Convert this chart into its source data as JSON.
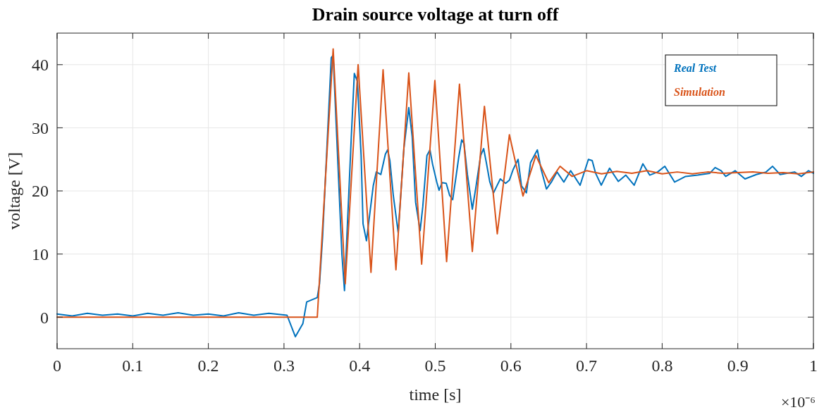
{
  "chart_data": {
    "type": "line",
    "title": "Drain source voltage at turn off",
    "xlabel": "time [s]",
    "ylabel": "voltage [V]",
    "annotations": [
      "×10⁻⁶"
    ],
    "xlim": [
      0,
      1
    ],
    "xticks": [
      0,
      0.1,
      0.2,
      0.3,
      0.4,
      0.5,
      0.6,
      0.7,
      0.8,
      0.9,
      1
    ],
    "ylim": [
      -5,
      45
    ],
    "yticks": [
      0,
      10,
      20,
      30,
      40
    ],
    "grid": true,
    "legend": "top right",
    "marker": "none",
    "line_style": "solid",
    "series": [
      {
        "name": "Real Test",
        "color": "#0072bd",
        "x": [
          0,
          0.02,
          0.04,
          0.06,
          0.08,
          0.1,
          0.12,
          0.14,
          0.16,
          0.18,
          0.2,
          0.22,
          0.24,
          0.26,
          0.28,
          0.304,
          0.315,
          0.325,
          0.33,
          0.344,
          0.347,
          0.351,
          0.3625,
          0.365,
          0.3765,
          0.38,
          0.389,
          0.393,
          0.397,
          0.402,
          0.4045,
          0.409,
          0.418,
          0.422,
          0.428,
          0.434,
          0.437,
          0.44,
          0.4445,
          0.451,
          0.4585,
          0.465,
          0.4695,
          0.474,
          0.48,
          0.4835,
          0.489,
          0.493,
          0.4965,
          0.502,
          0.505,
          0.509,
          0.5145,
          0.519,
          0.523,
          0.5275,
          0.531,
          0.535,
          0.538,
          0.5425,
          0.549,
          0.5535,
          0.56,
          0.564,
          0.5675,
          0.572,
          0.577,
          0.5815,
          0.586,
          0.593,
          0.598,
          0.603,
          0.6095,
          0.614,
          0.6205,
          0.626,
          0.635,
          0.64,
          0.647,
          0.654,
          0.661,
          0.67,
          0.679,
          0.6915,
          0.7025,
          0.7075,
          0.712,
          0.7195,
          0.7305,
          0.742,
          0.752,
          0.763,
          0.7745,
          0.7835,
          0.794,
          0.8035,
          0.8165,
          0.831,
          0.847,
          0.863,
          0.87,
          0.878,
          0.884,
          0.8965,
          0.9095,
          0.9245,
          0.9375,
          0.946,
          0.956,
          0.975,
          0.984,
          0.9935,
          1
        ],
        "values": [
          0.5,
          0.2,
          0.6,
          0.3,
          0.5,
          0.2,
          0.6,
          0.3,
          0.7,
          0.3,
          0.5,
          0.2,
          0.7,
          0.3,
          0.6,
          0.3,
          -3.1,
          -1,
          2.4,
          3.1,
          5.3,
          12.6,
          41.1,
          41.5,
          10.1,
          4.2,
          28.6,
          38.6,
          37.4,
          25.6,
          14.8,
          12.1,
          20.8,
          23,
          22.6,
          25.8,
          26.5,
          24.8,
          19.3,
          13.4,
          26.7,
          33.2,
          28.6,
          18.2,
          13.7,
          17.5,
          25.6,
          26.5,
          24.2,
          21.4,
          20.1,
          21.3,
          21.2,
          19.3,
          18.6,
          22.3,
          25.3,
          28.1,
          27.5,
          22.6,
          17.1,
          20.4,
          25.6,
          26.7,
          24.5,
          21.5,
          19.7,
          20.8,
          21.9,
          21.2,
          21.7,
          23.4,
          25,
          20.8,
          19.7,
          24.5,
          26.5,
          23.4,
          20.3,
          21.5,
          23,
          21.4,
          23.2,
          20.9,
          25,
          24.8,
          22.8,
          20.9,
          23.6,
          21.5,
          22.5,
          20.9,
          24.3,
          22.5,
          23,
          23.9,
          21.4,
          22.3,
          22.5,
          22.8,
          23.7,
          23.2,
          22.3,
          23.2,
          21.9,
          22.6,
          23,
          23.9,
          22.6,
          23,
          22.3,
          23.2,
          22.8
        ]
      },
      {
        "name": "Simulation",
        "color": "#d95319",
        "x": [
          0,
          0.344,
          0.365,
          0.381,
          0.398,
          0.415,
          0.431,
          0.448,
          0.465,
          0.482,
          0.4995,
          0.515,
          0.532,
          0.549,
          0.565,
          0.582,
          0.598,
          0.616,
          0.633,
          0.65,
          0.665,
          0.681,
          0.7,
          0.72,
          0.74,
          0.76,
          0.78,
          0.8,
          0.82,
          0.84,
          0.86,
          0.88,
          0.9,
          0.92,
          0.94,
          0.96,
          0.98,
          1
        ],
        "values": [
          0,
          0,
          42.5,
          5.3,
          40,
          7.1,
          39.2,
          7.5,
          38.7,
          8.4,
          37.5,
          8.8,
          36.9,
          10.4,
          33.4,
          13.2,
          28.9,
          19.2,
          25.6,
          21.3,
          23.9,
          22.3,
          23.2,
          22.7,
          23.1,
          22.8,
          23.2,
          22.7,
          23,
          22.7,
          23,
          22.8,
          22.9,
          23,
          22.8,
          22.9,
          22.7,
          23
        ]
      }
    ]
  }
}
